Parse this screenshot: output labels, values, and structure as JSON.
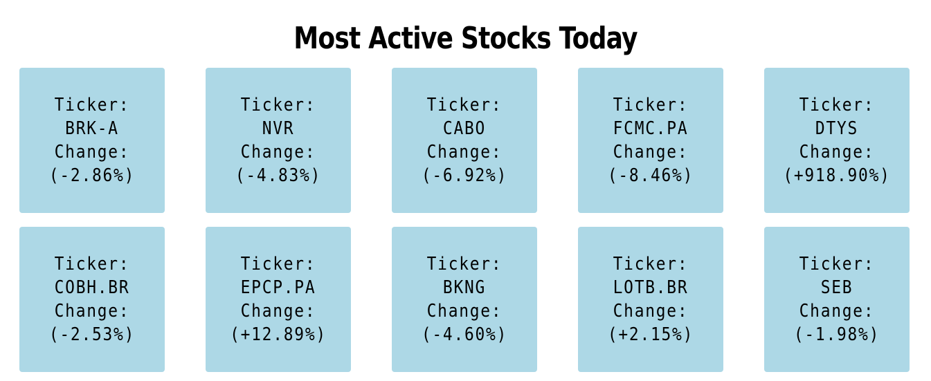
{
  "title": "Most Active Stocks Today",
  "colors": {
    "card_background": "#add8e6",
    "text": "#000000",
    "page_background": "#ffffff"
  },
  "stocks": [
    {
      "ticker_label": "Ticker:",
      "ticker": "BRK-A",
      "change_label": "Change:",
      "change": "(-2.86%)"
    },
    {
      "ticker_label": "Ticker:",
      "ticker": "NVR",
      "change_label": "Change:",
      "change": "(-4.83%)"
    },
    {
      "ticker_label": "Ticker:",
      "ticker": "CABO",
      "change_label": "Change:",
      "change": "(-6.92%)"
    },
    {
      "ticker_label": "Ticker:",
      "ticker": "FCMC.PA",
      "change_label": "Change:",
      "change": "(-8.46%)"
    },
    {
      "ticker_label": "Ticker:",
      "ticker": "DTYS",
      "change_label": "Change:",
      "change": "(+918.90%)"
    },
    {
      "ticker_label": "Ticker:",
      "ticker": "COBH.BR",
      "change_label": "Change:",
      "change": "(-2.53%)"
    },
    {
      "ticker_label": "Ticker:",
      "ticker": "EPCP.PA",
      "change_label": "Change:",
      "change": "(+12.89%)"
    },
    {
      "ticker_label": "Ticker:",
      "ticker": "BKNG",
      "change_label": "Change:",
      "change": "(-4.60%)"
    },
    {
      "ticker_label": "Ticker:",
      "ticker": "LOTB.BR",
      "change_label": "Change:",
      "change": "(+2.15%)"
    },
    {
      "ticker_label": "Ticker:",
      "ticker": "SEB",
      "change_label": "Change:",
      "change": "(-1.98%)"
    }
  ]
}
